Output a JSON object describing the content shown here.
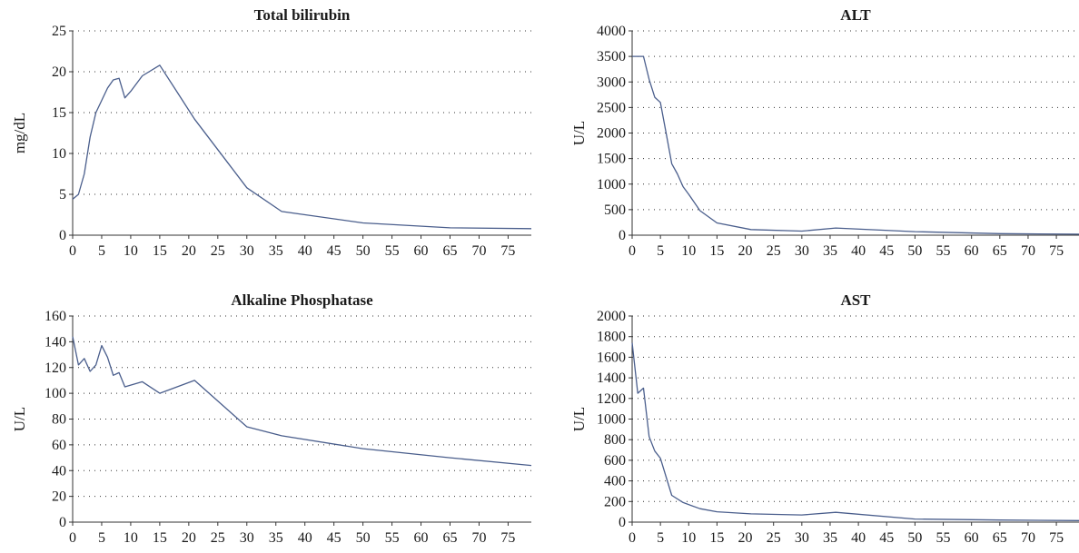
{
  "chart_data": [
    {
      "type": "line",
      "title": "Total bilirubin",
      "xlabel": "",
      "ylabel": "mg/dL",
      "xlim": [
        0,
        79
      ],
      "ylim": [
        0,
        25
      ],
      "xticks": [
        "0",
        "5",
        "10",
        "15",
        "20",
        "25",
        "30",
        "35",
        "40",
        "45",
        "50",
        "55",
        "60",
        "65",
        "70",
        "75"
      ],
      "yticks": [
        "0",
        "5",
        "10",
        "15",
        "20",
        "25"
      ],
      "grid": "horizontal dotted",
      "color": "#4a5e8c",
      "series": [
        {
          "x": [
            0,
            1,
            2,
            3,
            4,
            5,
            6,
            7,
            8,
            9,
            10,
            12,
            15,
            18,
            21,
            30,
            36,
            50,
            65,
            79
          ],
          "y": [
            4.4,
            5.0,
            7.5,
            12.0,
            15.0,
            16.5,
            18.0,
            19.0,
            19.2,
            16.8,
            17.6,
            19.5,
            20.8,
            17.5,
            14.2,
            5.8,
            2.9,
            1.5,
            0.9,
            0.8
          ]
        }
      ]
    },
    {
      "type": "line",
      "title": "ALT",
      "xlabel": "",
      "ylabel": "U/L",
      "xlim": [
        0,
        79
      ],
      "ylim": [
        0,
        4000
      ],
      "xticks": [
        "0",
        "5",
        "10",
        "15",
        "20",
        "25",
        "30",
        "35",
        "40",
        "45",
        "50",
        "55",
        "60",
        "65",
        "70",
        "75"
      ],
      "yticks": [
        "0",
        "500",
        "1000",
        "1500",
        "2000",
        "2500",
        "3000",
        "3500",
        "4000"
      ],
      "grid": "horizontal dotted",
      "color": "#4a5e8c",
      "series": [
        {
          "x": [
            0,
            1,
            2,
            3,
            4,
            5,
            6,
            7,
            8,
            9,
            10,
            12,
            15,
            21,
            30,
            36,
            50,
            65,
            79
          ],
          "y": [
            3500,
            3500,
            3500,
            3050,
            2700,
            2600,
            2000,
            1400,
            1200,
            950,
            800,
            480,
            240,
            110,
            80,
            140,
            70,
            30,
            20
          ]
        }
      ]
    },
    {
      "type": "line",
      "title": "Alkaline Phosphatase",
      "xlabel": "",
      "ylabel": "U/L",
      "xlim": [
        0,
        79
      ],
      "ylim": [
        0,
        160
      ],
      "xticks": [
        "0",
        "5",
        "10",
        "15",
        "20",
        "25",
        "30",
        "35",
        "40",
        "45",
        "50",
        "55",
        "60",
        "65",
        "70",
        "75"
      ],
      "yticks": [
        "0",
        "20",
        "40",
        "60",
        "80",
        "100",
        "120",
        "140",
        "160"
      ],
      "grid": "horizontal dotted",
      "color": "#4a5e8c",
      "series": [
        {
          "x": [
            0,
            1,
            2,
            3,
            4,
            5,
            6,
            7,
            8,
            9,
            12,
            15,
            21,
            30,
            36,
            50,
            65,
            79
          ],
          "y": [
            144,
            122,
            127,
            117,
            122,
            137,
            128,
            114,
            116,
            105,
            109,
            100,
            110,
            74,
            67,
            57,
            50,
            44
          ]
        }
      ]
    },
    {
      "type": "line",
      "title": "AST",
      "xlabel": "",
      "ylabel": "U/L",
      "xlim": [
        0,
        79
      ],
      "ylim": [
        0,
        2000
      ],
      "xticks": [
        "0",
        "5",
        "10",
        "15",
        "20",
        "25",
        "30",
        "35",
        "40",
        "45",
        "50",
        "55",
        "60",
        "65",
        "70",
        "75"
      ],
      "yticks": [
        "0",
        "200",
        "400",
        "600",
        "800",
        "1000",
        "1200",
        "1400",
        "1600",
        "1800",
        "2000"
      ],
      "grid": "horizontal dotted",
      "color": "#4a5e8c",
      "series": [
        {
          "x": [
            0,
            1,
            2,
            3,
            4,
            5,
            7,
            9,
            12,
            15,
            21,
            30,
            36,
            50,
            65,
            79
          ],
          "y": [
            1740,
            1250,
            1300,
            830,
            690,
            620,
            260,
            190,
            130,
            100,
            80,
            70,
            95,
            30,
            20,
            15
          ]
        }
      ]
    }
  ]
}
